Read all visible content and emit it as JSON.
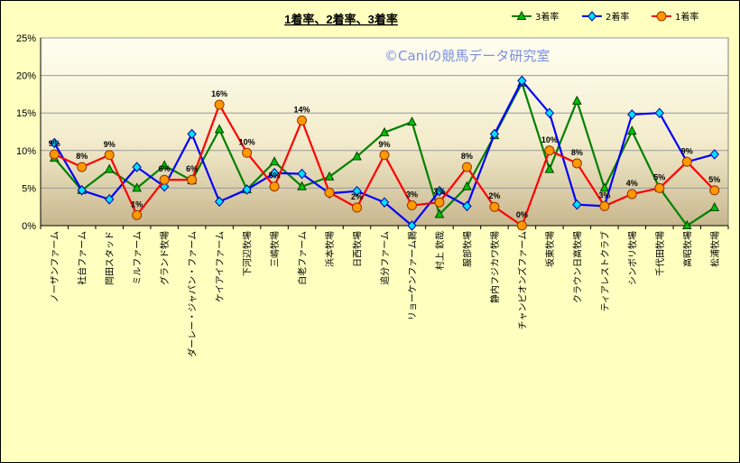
{
  "chart_data": {
    "type": "line",
    "title": "1着率、2着率、3着率",
    "watermark": "©Caniの競馬データ研究室",
    "ylim": [
      0,
      25
    ],
    "yticks": [
      "0%",
      "5%",
      "10%",
      "15%",
      "20%",
      "25%"
    ],
    "ytick_values": [
      0,
      5,
      10,
      15,
      20,
      25
    ],
    "grid": true,
    "legend_position": "top-right",
    "categories": [
      "ノーザンファーム",
      "社台ファーム",
      "岡田スタッド",
      "ミルファーム",
      "グランド牧場",
      "ダーレー・ジャパン・ファーム",
      "ケイアイファーム",
      "下河辺牧場",
      "三嶋牧場",
      "白老ファーム",
      "浜本牧場",
      "日西牧場",
      "追分ファーム",
      "リョーケンファーム鵜",
      "村上 欽哉",
      "服部牧場",
      "静内フジカワ牧場",
      "チャンピオンズファーム",
      "坂東牧場",
      "クラウン日高牧場",
      "ティアレストクラブ",
      "シンボリ牧場",
      "千代田牧場",
      "高昭牧場",
      "松浦牧場"
    ],
    "series": [
      {
        "name": "3着率",
        "color": "#008000",
        "marker": "triangle",
        "values": [
          9.0,
          4.7,
          7.5,
          5.0,
          8.0,
          6.0,
          12.8,
          4.8,
          8.5,
          5.2,
          6.5,
          9.2,
          12.4,
          13.8,
          1.5,
          5.2,
          12.0,
          19.0,
          7.5,
          16.6,
          5.0,
          12.6,
          5.0,
          0.0,
          2.4
        ]
      },
      {
        "name": "2着率",
        "color": "#0000ff",
        "marker": "diamond",
        "values": [
          11.0,
          4.7,
          3.5,
          7.8,
          5.2,
          12.2,
          3.2,
          4.8,
          7.0,
          6.9,
          4.3,
          4.6,
          3.1,
          0.0,
          4.6,
          2.6,
          12.2,
          19.3,
          15.0,
          2.8,
          2.6,
          14.8,
          15.0,
          8.5,
          9.5
        ]
      },
      {
        "name": "1着率",
        "color": "#ff0000",
        "marker": "circle",
        "values": [
          9.5,
          7.8,
          9.4,
          1.4,
          6.1,
          6.1,
          16.1,
          9.7,
          5.2,
          14.0,
          4.4,
          2.4,
          9.4,
          2.7,
          3.1,
          7.8,
          2.5,
          0.0,
          10.0,
          8.3,
          2.6,
          4.2,
          5.0,
          8.5,
          4.7
        ]
      }
    ],
    "data_labels_series": "1着率",
    "data_labels": [
      "9%",
      "8%",
      "9%",
      "1%",
      "6%",
      "6%",
      "16%",
      "10%",
      "5%",
      "14%",
      "",
      "2%",
      "9%",
      "3%",
      "3%",
      "8%",
      "2%",
      "0%",
      "10%",
      "8%",
      "3%",
      "4%",
      "5%",
      "9%",
      "5%"
    ]
  }
}
